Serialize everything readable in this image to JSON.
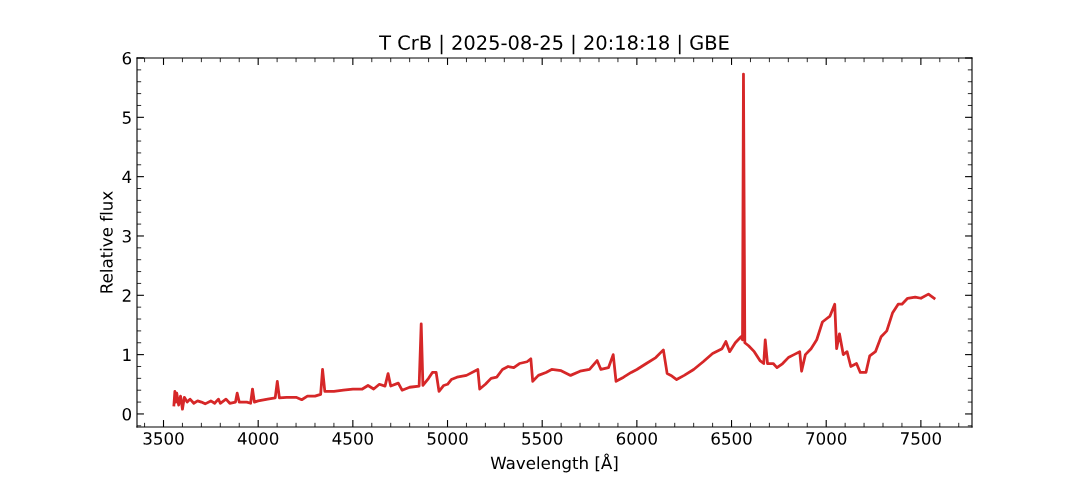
{
  "chart_data": {
    "type": "line",
    "title": "T CrB | 2025-08-25 | 20:18:18 | GBE",
    "xlabel": "Wavelength [Å]",
    "ylabel": "Relative flux",
    "x": [
      3555,
      3560,
      3565,
      3570,
      3580,
      3590,
      3600,
      3610,
      3625,
      3640,
      3660,
      3680,
      3700,
      3720,
      3750,
      3770,
      3790,
      3800,
      3830,
      3850,
      3880,
      3889,
      3900,
      3940,
      3960,
      3970,
      3980,
      4000,
      4050,
      4090,
      4101,
      4112,
      4150,
      4200,
      4230,
      4260,
      4300,
      4330,
      4340,
      4352,
      4400,
      4450,
      4500,
      4550,
      4580,
      4610,
      4640,
      4670,
      4686,
      4700,
      4740,
      4760,
      4800,
      4850,
      4861,
      4870,
      4900,
      4920,
      4940,
      4955,
      4980,
      5000,
      5020,
      5050,
      5100,
      5160,
      5170,
      5200,
      5230,
      5260,
      5290,
      5320,
      5350,
      5380,
      5420,
      5440,
      5450,
      5480,
      5520,
      5550,
      5600,
      5650,
      5700,
      5750,
      5790,
      5810,
      5850,
      5875,
      5890,
      5930,
      5970,
      6000,
      6050,
      6100,
      6140,
      6160,
      6180,
      6210,
      6250,
      6300,
      6350,
      6400,
      6450,
      6470,
      6490,
      6520,
      6550,
      6558,
      6563,
      6570,
      6590,
      6620,
      6650,
      6670,
      6678,
      6690,
      6720,
      6740,
      6770,
      6800,
      6830,
      6860,
      6870,
      6890,
      6920,
      6950,
      6980,
      7000,
      7020,
      7045,
      7055,
      7070,
      7090,
      7110,
      7130,
      7160,
      7180,
      7210,
      7230,
      7260,
      7290,
      7320,
      7350,
      7380,
      7400,
      7430,
      7470,
      7500,
      7540,
      7570
    ],
    "series": [
      {
        "color": "#d62728",
        "values": [
          0.15,
          0.38,
          0.2,
          0.35,
          0.15,
          0.3,
          0.08,
          0.28,
          0.2,
          0.25,
          0.18,
          0.22,
          0.2,
          0.17,
          0.22,
          0.18,
          0.25,
          0.18,
          0.25,
          0.18,
          0.2,
          0.35,
          0.2,
          0.2,
          0.18,
          0.42,
          0.2,
          0.22,
          0.25,
          0.27,
          0.55,
          0.27,
          0.28,
          0.28,
          0.24,
          0.3,
          0.3,
          0.33,
          0.75,
          0.38,
          0.38,
          0.4,
          0.42,
          0.42,
          0.48,
          0.42,
          0.5,
          0.47,
          0.68,
          0.47,
          0.52,
          0.4,
          0.45,
          0.47,
          1.52,
          0.48,
          0.6,
          0.7,
          0.7,
          0.38,
          0.48,
          0.5,
          0.58,
          0.62,
          0.65,
          0.75,
          0.42,
          0.5,
          0.6,
          0.62,
          0.75,
          0.8,
          0.78,
          0.85,
          0.88,
          0.93,
          0.55,
          0.65,
          0.7,
          0.75,
          0.73,
          0.65,
          0.72,
          0.75,
          0.9,
          0.75,
          0.78,
          1.0,
          0.55,
          0.62,
          0.7,
          0.75,
          0.85,
          0.95,
          1.08,
          0.68,
          0.65,
          0.58,
          0.65,
          0.75,
          0.88,
          1.02,
          1.1,
          1.22,
          1.05,
          1.2,
          1.3,
          1.25,
          5.73,
          1.2,
          1.15,
          1.05,
          0.9,
          0.85,
          1.25,
          0.85,
          0.85,
          0.78,
          0.85,
          0.95,
          1.0,
          1.05,
          0.72,
          1.0,
          1.1,
          1.25,
          1.55,
          1.6,
          1.65,
          1.85,
          1.1,
          1.35,
          1.0,
          1.05,
          0.8,
          0.85,
          0.7,
          0.7,
          0.98,
          1.05,
          1.3,
          1.4,
          1.7,
          1.85,
          1.85,
          1.95,
          1.97,
          1.95,
          2.02,
          1.95
        ]
      }
    ],
    "xlim": [
      3360,
      7770
    ],
    "ylim": [
      -0.22,
      6
    ],
    "xticks": [
      3500,
      4000,
      4500,
      5000,
      5500,
      6000,
      6500,
      7000,
      7500
    ],
    "yticks": [
      0,
      1,
      2,
      3,
      4,
      5,
      6
    ],
    "marker": "none",
    "line_style": "solid"
  }
}
